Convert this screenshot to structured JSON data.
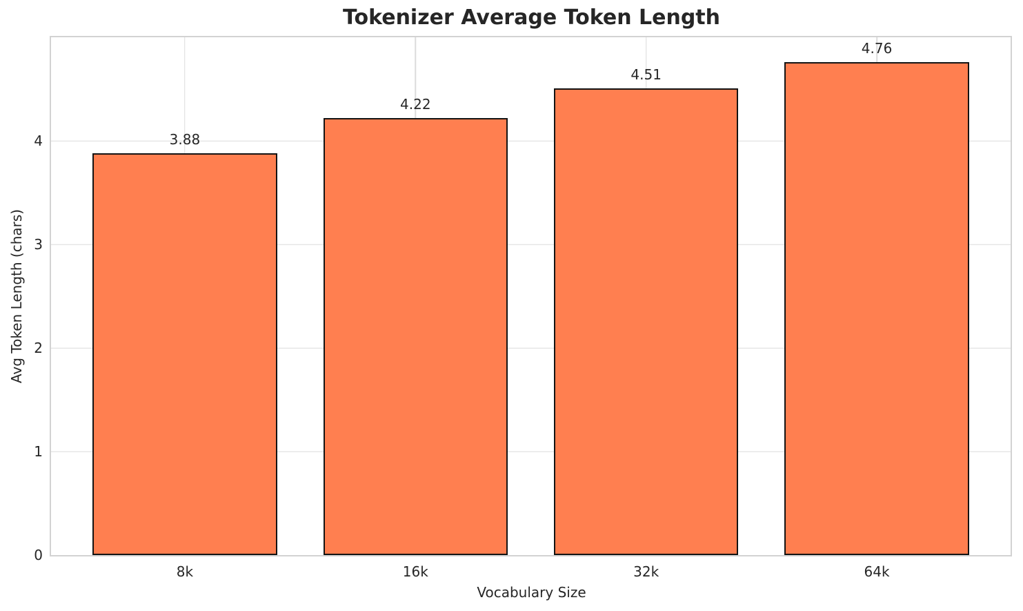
{
  "chart_data": {
    "type": "bar",
    "title": "Tokenizer Average Token Length",
    "xlabel": "Vocabulary Size",
    "ylabel": "Avg Token Length (chars)",
    "categories": [
      "8k",
      "16k",
      "32k",
      "64k"
    ],
    "values": [
      3.88,
      4.22,
      4.51,
      4.76
    ],
    "value_labels": [
      "3.88",
      "4.22",
      "4.51",
      "4.76"
    ],
    "yticks": [
      0,
      1,
      2,
      3,
      4
    ],
    "ytick_labels": [
      "0",
      "1",
      "2",
      "3",
      "4"
    ],
    "ylim": [
      0,
      5
    ],
    "grid": "on",
    "legend": "none",
    "bar_color": "#FF7F50",
    "bar_edge_color": "#131313",
    "grid_color": "#dcdcdc",
    "spine_color": "#d2d2d2",
    "text_color": "#262626"
  }
}
